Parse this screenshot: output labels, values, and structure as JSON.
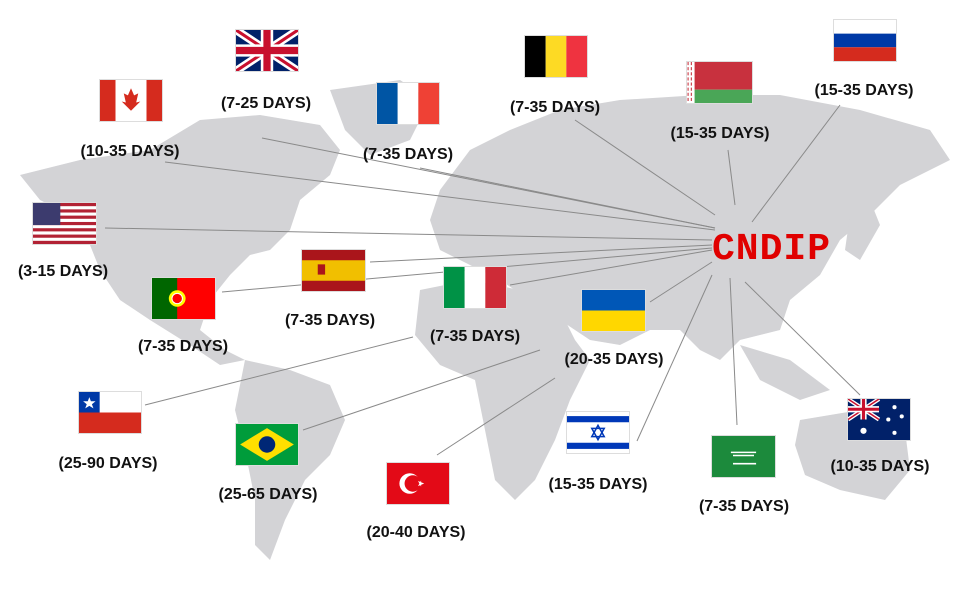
{
  "hub": {
    "label": "CNDIP",
    "color": "#e00000"
  },
  "map_color": "#d3d3d6",
  "destinations": [
    {
      "country": "United Kingdom",
      "flag_icon": "uk-flag-icon",
      "delivery": "(7-25 DAYS)"
    },
    {
      "country": "Canada",
      "flag_icon": "canada-flag-icon",
      "delivery": "(10-35 DAYS)"
    },
    {
      "country": "France",
      "flag_icon": "france-flag-icon",
      "delivery": "(7-35 DAYS)"
    },
    {
      "country": "Belgium",
      "flag_icon": "belgium-flag-icon",
      "delivery": "(7-35 DAYS)"
    },
    {
      "country": "Belarus",
      "flag_icon": "belarus-flag-icon",
      "delivery": "(15-35 DAYS)"
    },
    {
      "country": "Russia",
      "flag_icon": "russia-flag-icon",
      "delivery": "(15-35 DAYS)"
    },
    {
      "country": "United States",
      "flag_icon": "usa-flag-icon",
      "delivery": "(3-15 DAYS)"
    },
    {
      "country": "Spain",
      "flag_icon": "spain-flag-icon",
      "delivery": "(7-35 DAYS)"
    },
    {
      "country": "Portugal",
      "flag_icon": "portugal-flag-icon",
      "delivery": "(7-35 DAYS)"
    },
    {
      "country": "Italy",
      "flag_icon": "italy-flag-icon",
      "delivery": "(7-35 DAYS)"
    },
    {
      "country": "Ukraine",
      "flag_icon": "ukraine-flag-icon",
      "delivery": "(20-35 DAYS)"
    },
    {
      "country": "Chile",
      "flag_icon": "chile-flag-icon",
      "delivery": "(25-90 DAYS)"
    },
    {
      "country": "Brazil",
      "flag_icon": "brazil-flag-icon",
      "delivery": "(25-65 DAYS)"
    },
    {
      "country": "Turkey",
      "flag_icon": "turkey-flag-icon",
      "delivery": "(20-40 DAYS)"
    },
    {
      "country": "Israel",
      "flag_icon": "israel-flag-icon",
      "delivery": "(15-35 DAYS)"
    },
    {
      "country": "Saudi Arabia",
      "flag_icon": "saudi-flag-icon",
      "delivery": "(7-35 DAYS)"
    },
    {
      "country": "Australia",
      "flag_icon": "australia-flag-icon",
      "delivery": "(10-35 DAYS)"
    }
  ]
}
